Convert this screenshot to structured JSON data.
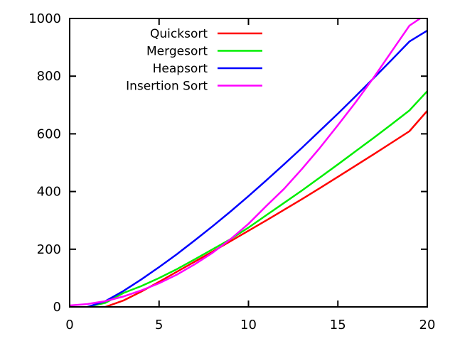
{
  "chart_data": {
    "type": "line",
    "title": "",
    "xlabel": "",
    "ylabel": "",
    "xlim": [
      0,
      20
    ],
    "ylim": [
      0,
      1000
    ],
    "x_ticks": [
      0,
      5,
      10,
      15,
      20
    ],
    "y_ticks": [
      0,
      200,
      400,
      600,
      800,
      1000
    ],
    "grid": false,
    "legend_position": "top-left",
    "series": [
      {
        "name": "Quicksort",
        "color": "#ff0000",
        "x": [
          2,
          3,
          4,
          5,
          6,
          7,
          8,
          9,
          10,
          11,
          12,
          13,
          14,
          15,
          16,
          17,
          18,
          19,
          20
        ],
        "y": [
          0,
          22,
          53,
          87,
          122,
          157,
          192,
          228,
          264,
          300,
          337,
          374,
          412,
          451,
          490,
          529,
          569,
          609,
          680
        ]
      },
      {
        "name": "Mergesort",
        "color": "#00ee00",
        "x": [
          1,
          2,
          3,
          4,
          5,
          6,
          7,
          8,
          9,
          10,
          11,
          12,
          13,
          14,
          15,
          16,
          17,
          18,
          19,
          20
        ],
        "y": [
          0,
          14,
          48,
          72,
          100,
          131,
          165,
          200,
          235,
          275,
          318,
          361,
          404,
          449,
          494,
          540,
          586,
          633,
          681,
          748
        ]
      },
      {
        "name": "Heapsort",
        "color": "#0000ff",
        "x": [
          1,
          2,
          3,
          4,
          5,
          6,
          7,
          8,
          9,
          10,
          11,
          12,
          13,
          14,
          15,
          16,
          17,
          18,
          19,
          20
        ],
        "y": [
          0,
          20,
          55,
          95,
          138,
          183,
          231,
          280,
          331,
          384,
          439,
          495,
          552,
          611,
          670,
          731,
          793,
          856,
          920,
          958
        ]
      },
      {
        "name": "Insertion Sort",
        "color": "#ff00ff",
        "x": [
          0,
          1,
          2,
          3,
          4,
          5,
          6,
          7,
          8,
          9,
          10,
          11,
          12,
          13,
          14,
          15,
          16,
          17,
          18,
          19,
          19.6
        ],
        "y": [
          5,
          10,
          20,
          36,
          57,
          82,
          112,
          148,
          188,
          235,
          288,
          350,
          410,
          479,
          552,
          630,
          710,
          795,
          885,
          975,
          1000
        ]
      }
    ]
  }
}
